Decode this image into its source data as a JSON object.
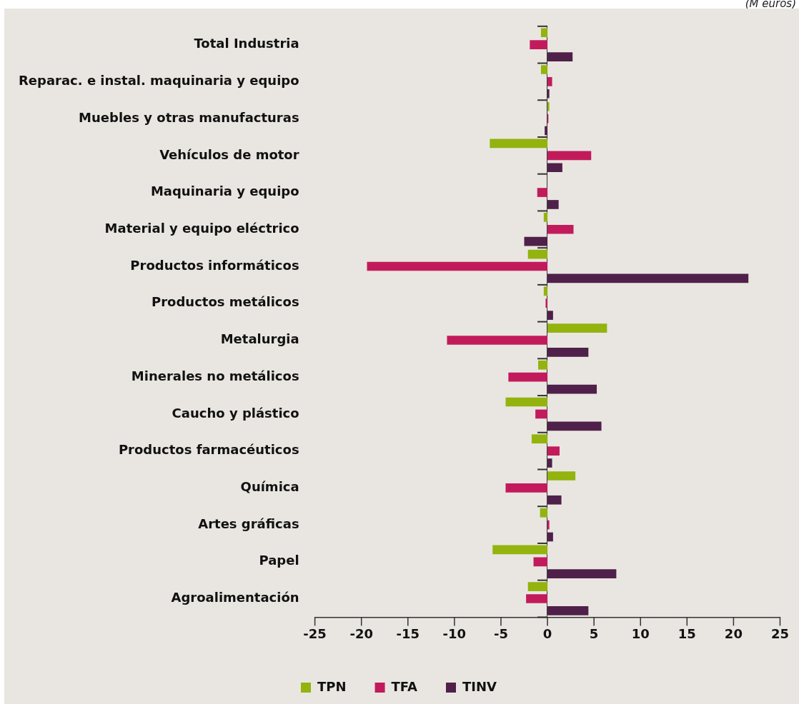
{
  "chart_data": {
    "type": "bar",
    "orientation": "horizontal",
    "categories": [
      "Total Industria",
      "Reparac. e instal. maquinaria y equipo",
      "Muebles y otras manufacturas",
      "Vehículos de motor",
      "Maquinaria y equipo",
      "Material y equipo eléctrico",
      "Productos informáticos",
      "Productos metálicos",
      "Metalurgia",
      "Minerales no metálicos",
      "Caucho y plástico",
      "Productos farmacéuticos",
      "Química",
      "Artes gráficas",
      "Papel",
      "Agroalimentación"
    ],
    "series": [
      {
        "name": "TPN",
        "color": "#93b30e",
        "values": [
          -0.7,
          -0.7,
          0.2,
          -6.2,
          0,
          -0.4,
          -2.1,
          -0.4,
          6.4,
          -1.0,
          -4.5,
          -1.7,
          3.0,
          -0.8,
          -5.9,
          -2.1
        ]
      },
      {
        "name": "TFA",
        "color": "#c21b5c",
        "values": [
          -1.9,
          0.5,
          0.1,
          4.7,
          -1.1,
          2.8,
          -19.4,
          -0.2,
          -10.8,
          -4.2,
          -1.3,
          1.3,
          -4.5,
          0.2,
          -1.5,
          -2.3
        ]
      },
      {
        "name": "TINV",
        "color": "#4f2049",
        "values": [
          2.7,
          0.2,
          -0.3,
          1.6,
          1.2,
          -2.5,
          21.6,
          0.6,
          4.4,
          5.3,
          5.8,
          0.5,
          1.5,
          0.6,
          7.4,
          4.4
        ]
      }
    ],
    "xlim": [
      -25,
      25
    ],
    "xticks": [
      -25,
      -20,
      -15,
      -10,
      -5,
      0,
      5,
      10,
      15,
      20,
      25
    ],
    "legend": "bottom",
    "annotations": [
      "(M euros)"
    ]
  }
}
